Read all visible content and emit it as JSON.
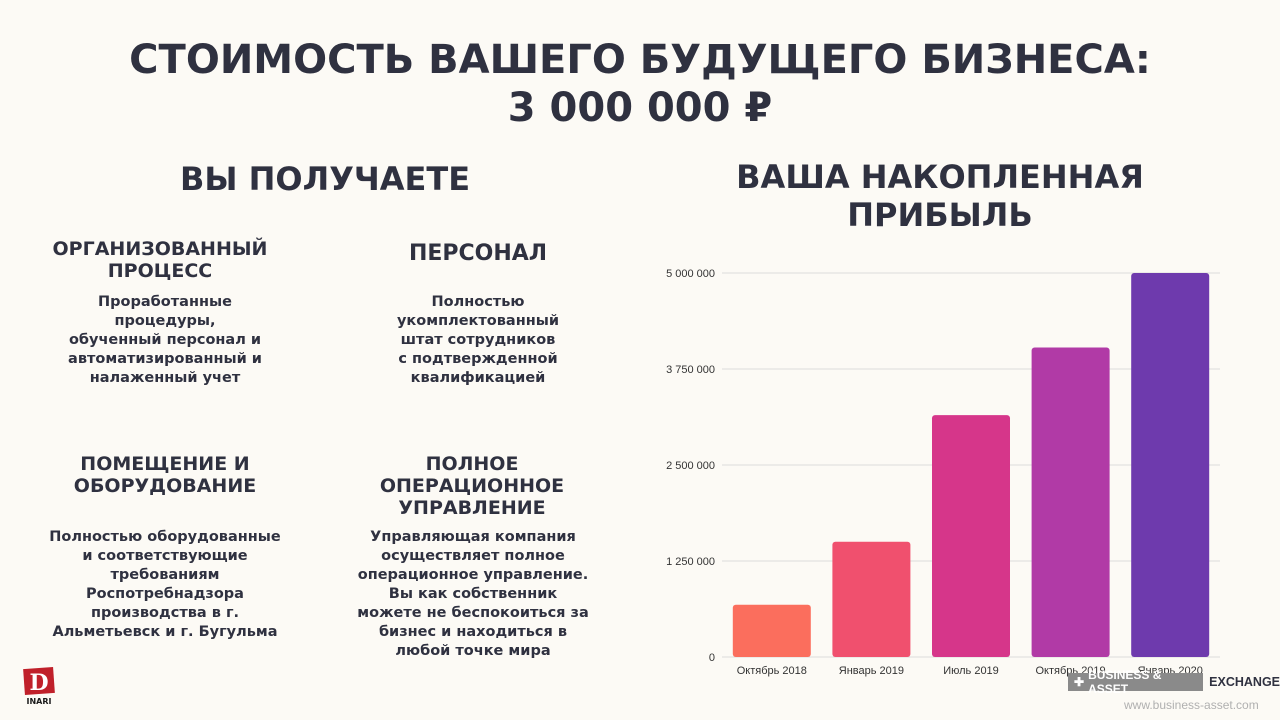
{
  "header": {
    "title_line1": "СТОИМОСТЬ ВАШЕГО БУДУЩЕГО  БИЗНЕСА:",
    "title_line2": "3 000 000  ₽"
  },
  "left": {
    "heading": "ВЫ ПОЛУЧАЕТЕ",
    "features": [
      {
        "title": "ОРГАНИЗОВАННЫЙ\nПРОЦЕСС",
        "text": "Проработанные\nпроцедуры,\nобученный персонал и\nавтоматизированный и\nналаженный учет"
      },
      {
        "title": "ПЕРСОНАЛ",
        "text": "Полностью\nукомплектованный\nштат сотрудников\nс подтвержденной\nквалификацией"
      },
      {
        "title": "ПОМЕЩЕНИЕ И\nОБОРУДОВАНИЕ",
        "text": "Полностью оборудованные\nи соответствующие\nтребованиям\nРоспотребнадзора\nпроизводства в г.\nАльметьевск и г. Бугульма"
      },
      {
        "title": "ПОЛНОЕ\nОПЕРАЦИОННОЕ\nУПРАВЛЕНИЕ",
        "text": "Управляющая компания\nосуществляет полное\nоперационное управление.\nВы как собственник\nможете не беспокоиться за\nбизнес и находиться в\nлюбой точке мира"
      }
    ]
  },
  "right": {
    "heading_line1": "ВАША НАКОПЛЕННАЯ",
    "heading_line2": "ПРИБЫЛЬ"
  },
  "chart_data": {
    "type": "bar",
    "categories": [
      "Октябрь 2018",
      "Январь 2019",
      "Июль 2019",
      "Октябрь 2019",
      "Январь 2020"
    ],
    "values": [
      680000,
      1500000,
      3150000,
      4030000,
      5000000
    ],
    "ylim": [
      0,
      5000000
    ],
    "yticks": [
      0,
      1250000,
      2500000,
      3750000,
      5000000
    ],
    "ytick_labels": [
      "0",
      "1 250 000",
      "2 500 000",
      "3 750 000",
      "5 000 000"
    ],
    "bar_colors": [
      "#fb6e5d",
      "#f0506e",
      "#d6368a",
      "#b13aa6",
      "#6e3aad"
    ],
    "grid": true
  },
  "footer": {
    "logo_letter": "D",
    "logo_text": "INARI",
    "badge_left": "BUSINESS & ASSET",
    "badge_right": "EXCHANGE",
    "website": "www.business-asset.com"
  }
}
